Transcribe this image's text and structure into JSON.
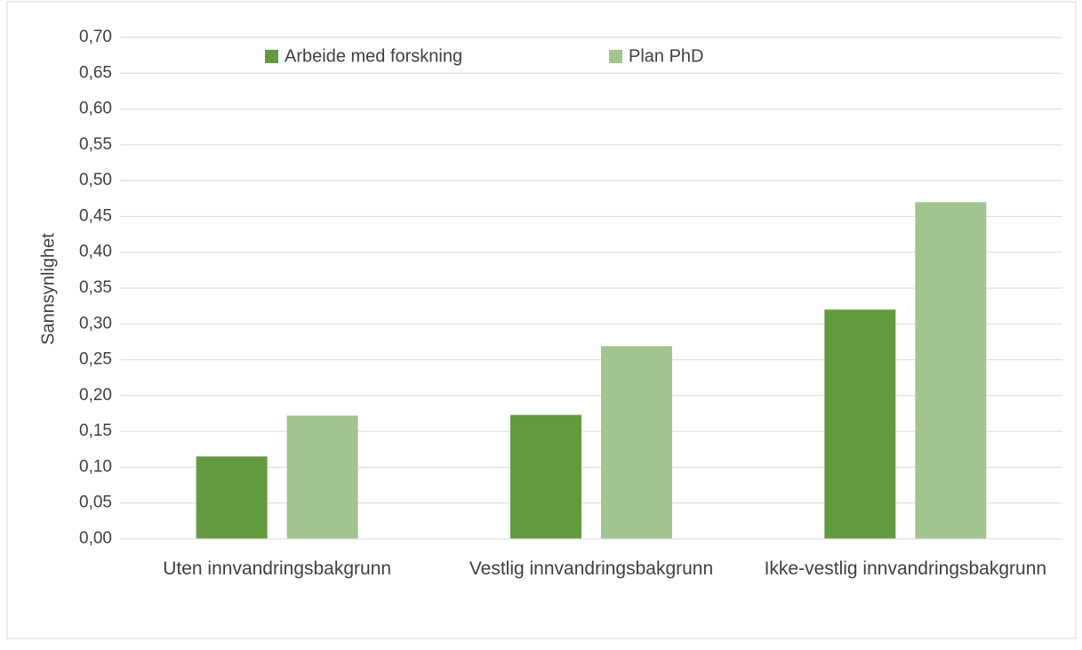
{
  "chart_data": {
    "type": "bar",
    "y_label": "Sannsynlighet",
    "categories": [
      "Uten innvandringsbakgrunn",
      "Vestlig innvandringsbakgrunn",
      "Ikke-vestlig innvandringsbakgrunn"
    ],
    "series": [
      {
        "name": "Arbeide med forskning",
        "color": "#629b3e",
        "values": [
          0.115,
          0.173,
          0.32
        ]
      },
      {
        "name": "Plan PhD",
        "color": "#a2c48e",
        "values": [
          0.172,
          0.269,
          0.47
        ]
      }
    ],
    "ylim": [
      0,
      0.7
    ],
    "yticks": [
      {
        "value": 0,
        "label": "0,00"
      },
      {
        "value": 0.05,
        "label": "0,05"
      },
      {
        "value": 0.1,
        "label": "0,10"
      },
      {
        "value": 0.15,
        "label": "0,15"
      },
      {
        "value": 0.2,
        "label": "0,20"
      },
      {
        "value": 0.25,
        "label": "0,25"
      },
      {
        "value": 0.3,
        "label": "0,30"
      },
      {
        "value": 0.35,
        "label": "0,35"
      },
      {
        "value": 0.4,
        "label": "0,40"
      },
      {
        "value": 0.45,
        "label": "0,45"
      },
      {
        "value": 0.5,
        "label": "0,50"
      },
      {
        "value": 0.55,
        "label": "0,55"
      },
      {
        "value": 0.6,
        "label": "0,60"
      },
      {
        "value": 0.65,
        "label": "0,65"
      },
      {
        "value": 0.7,
        "label": "0,70"
      }
    ],
    "grid": true,
    "legend": "top"
  }
}
